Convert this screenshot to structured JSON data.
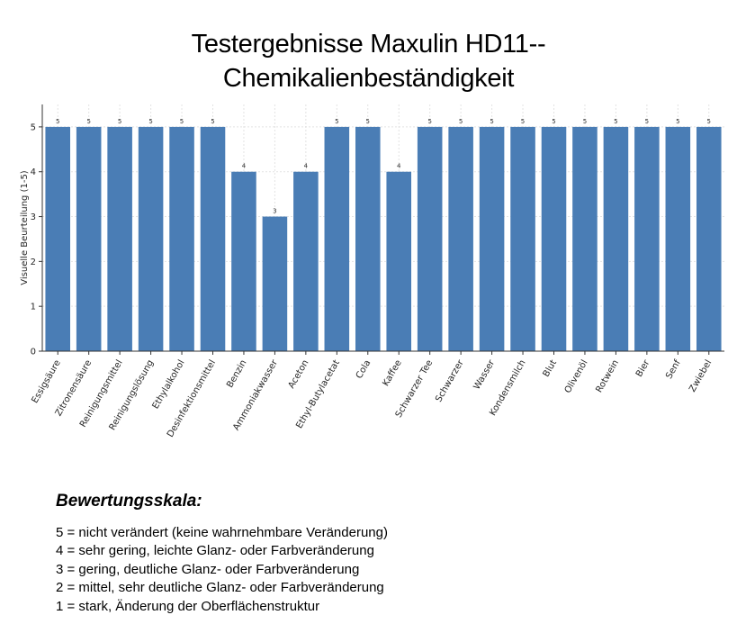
{
  "chart_data": {
    "type": "bar",
    "title_lines": [
      "Testergebnisse Maxulin HD11--",
      "Chemikalienbeständigkeit"
    ],
    "ylabel": "Visuelle Beurteilung (1-5)",
    "xlabel": "",
    "ylim": [
      0,
      5.5
    ],
    "yticks": [
      0,
      1,
      2,
      3,
      4,
      5
    ],
    "grid": true,
    "bar_color": "#4a7db5",
    "categories": [
      "Essigsäure",
      "Zitronensäure",
      "Reinigungsmittel",
      "Reinigungslösung",
      "Ethylalkohol",
      "Desinfektionsmittel",
      "Benzin",
      "Ammoniakwasser",
      "Aceton",
      "Ethyl-Butylacetat",
      "Cola",
      "Kaffee",
      "Schwarzer Tee",
      "Schwarzer",
      "Wasser",
      "Kondensmilch",
      "Blut",
      "Olivenöl",
      "Rotwein",
      "Bier",
      "Senf",
      "Zwiebel"
    ],
    "values": [
      5,
      5,
      5,
      5,
      5,
      5,
      4,
      3,
      4,
      5,
      5,
      4,
      5,
      5,
      5,
      5,
      5,
      5,
      5,
      5,
      5,
      5
    ]
  },
  "legend": {
    "title": "Bewertungsskala:",
    "items": [
      "5 = nicht verändert (keine wahrnehmbare Veränderung)",
      "4 = sehr gering, leichte Glanz- oder Farbveränderung",
      "3 = gering, deutliche Glanz- oder Farbveränderung",
      "2 = mittel, sehr deutliche Glanz- oder Farbveränderung",
      "1 = stark, Änderung der Oberflächenstruktur"
    ]
  }
}
